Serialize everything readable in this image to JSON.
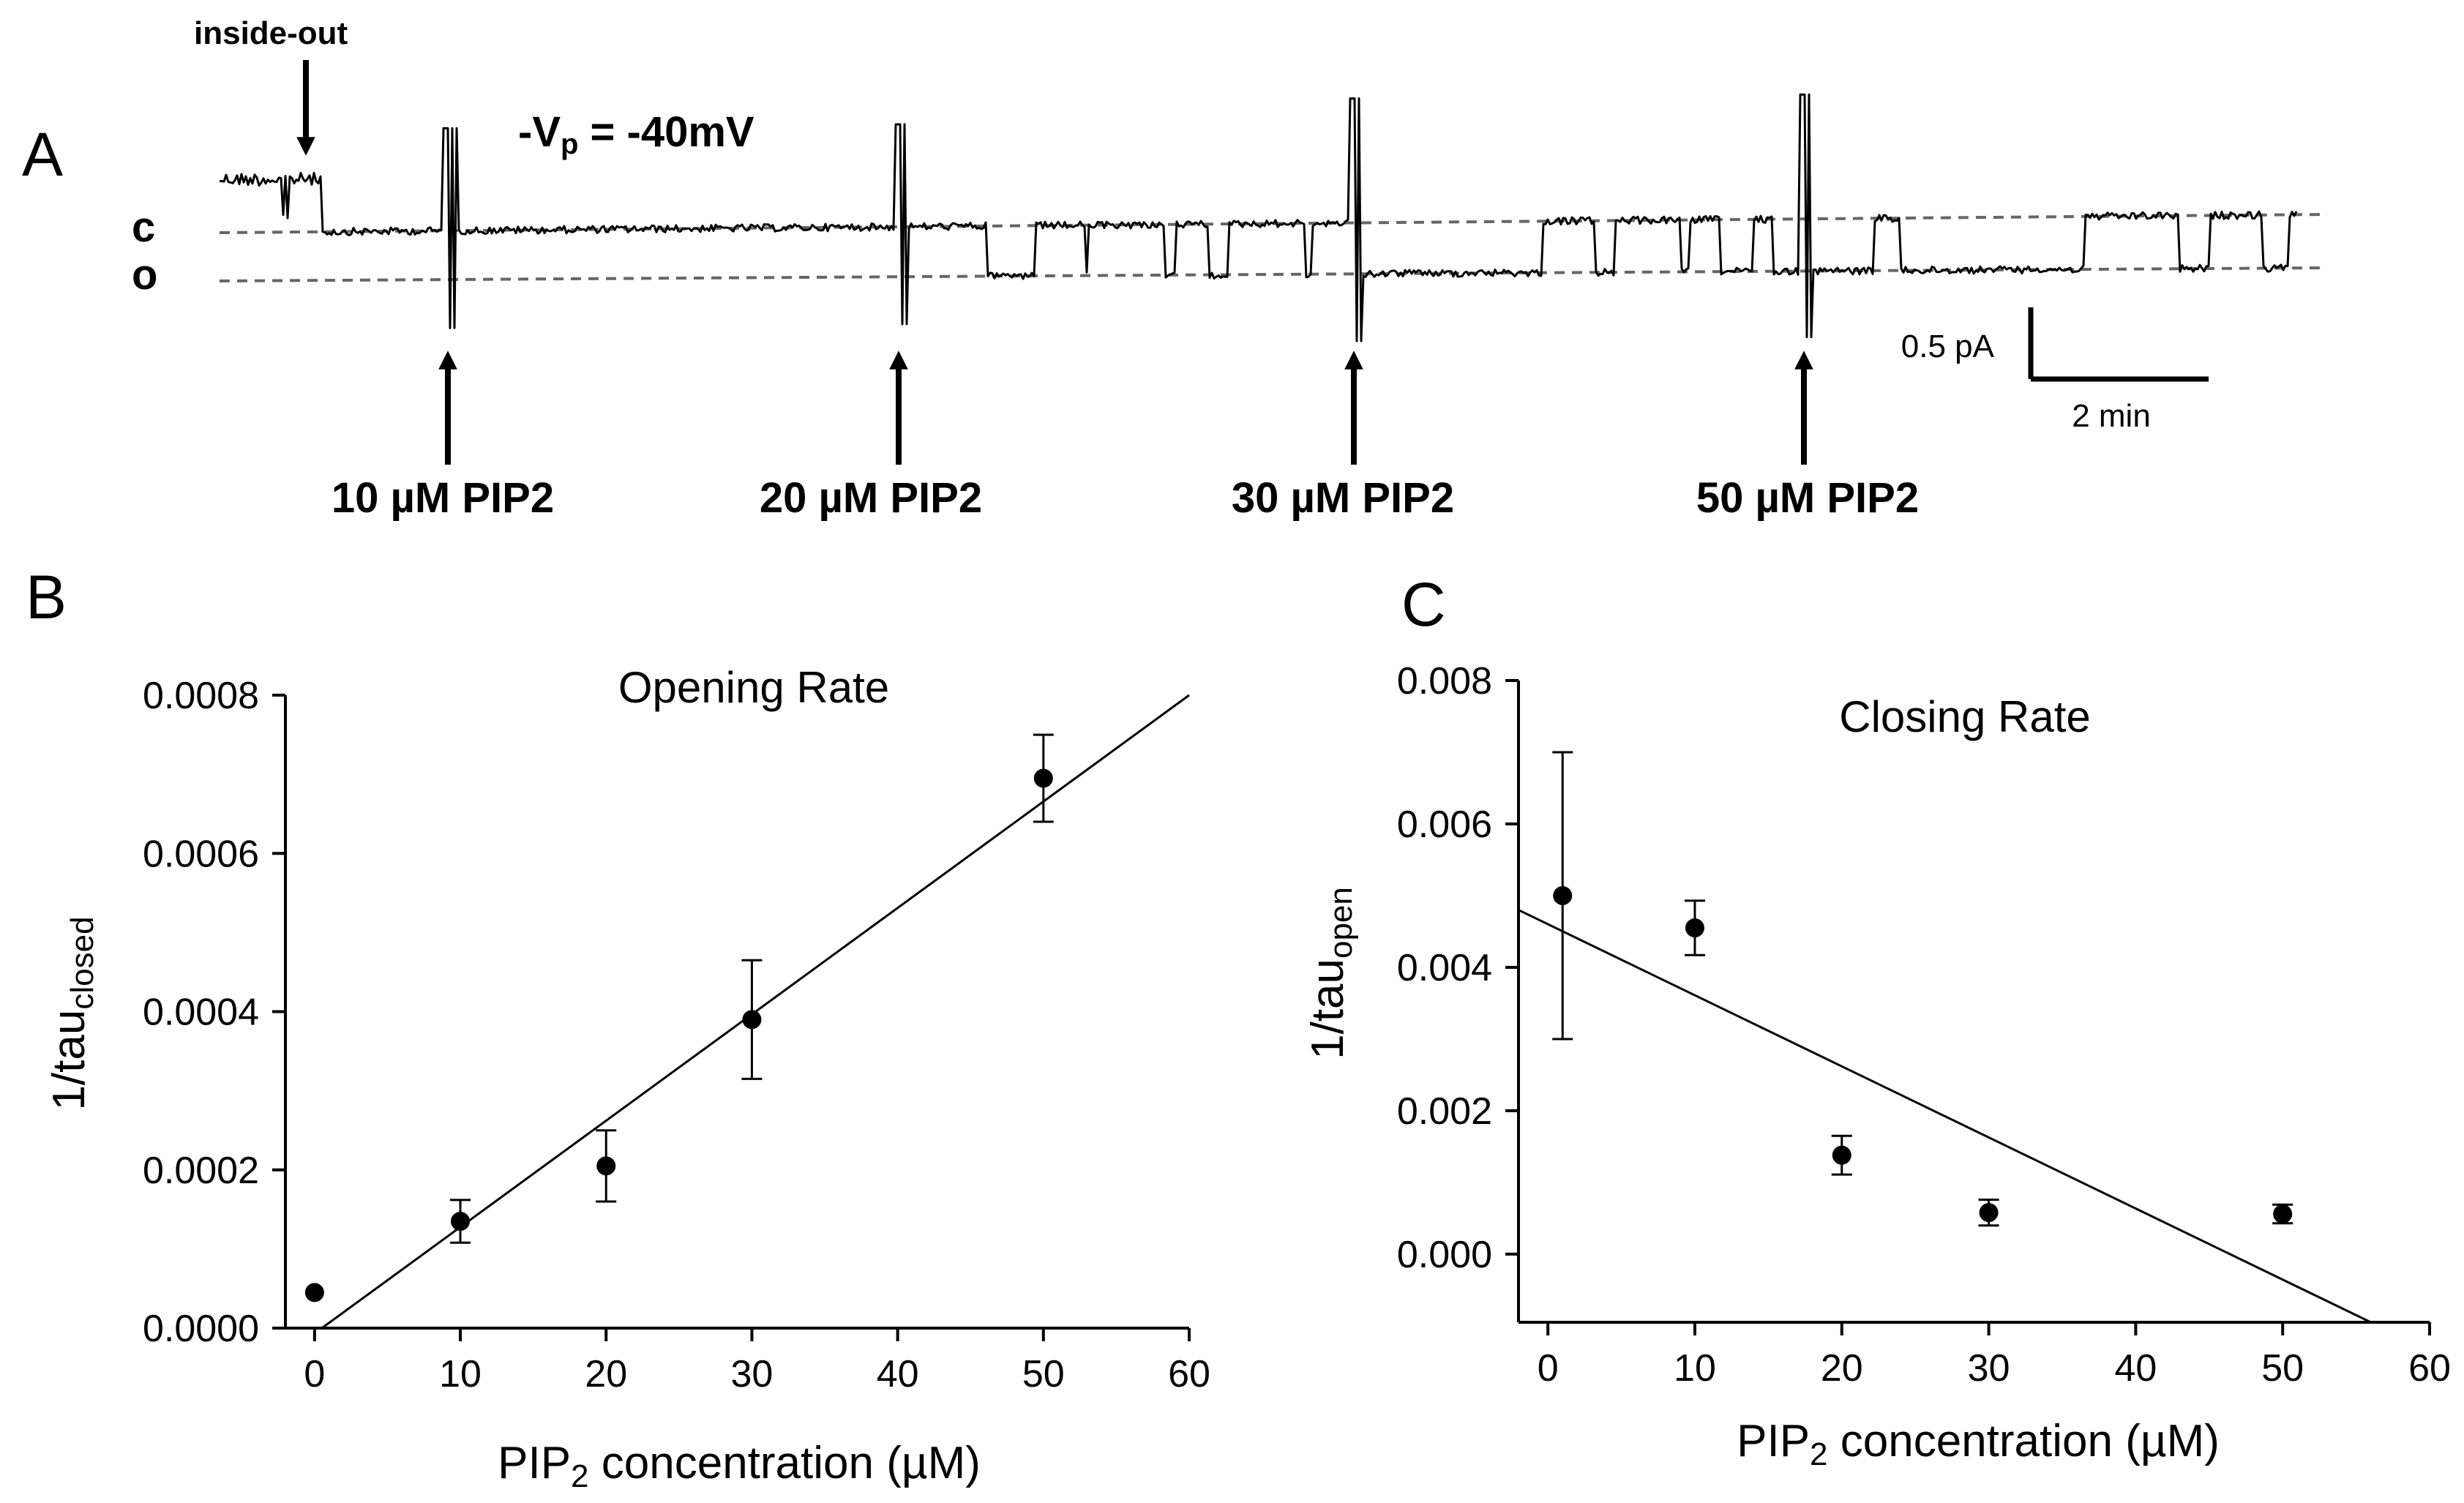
{
  "panelA": {
    "letter": "A",
    "inside_out_label": "inside-out",
    "closed_label": "c",
    "open_label": "o",
    "voltage_prefix": "-V",
    "voltage_sub": "p",
    "voltage_value": " = -40mV",
    "scale_current": "0.5 pA",
    "scale_time": "2 min",
    "applications": [
      {
        "label": "10 µM PIP2"
      },
      {
        "label": "20 µM PIP2"
      },
      {
        "label": "30 µM PIP2"
      },
      {
        "label": "50 µM PIP2"
      }
    ]
  },
  "panelB": {
    "letter": "B"
  },
  "panelC": {
    "letter": "C"
  },
  "chart_data": [
    {
      "type": "scatter",
      "id": "B",
      "title": "Opening Rate",
      "xlabel_pre": "PIP",
      "xlabel_sub": "2",
      "xlabel_post": " concentration (µM)",
      "ylabel_main": "1/tau",
      "ylabel_sub": "closed",
      "xlim": [
        -2,
        60
      ],
      "ylim": [
        0,
        0.0008
      ],
      "xticks": [
        0,
        10,
        20,
        30,
        40,
        50,
        60
      ],
      "yticks": [
        0,
        0.0002,
        0.0004,
        0.0006,
        0.0008
      ],
      "ytick_labels": [
        "0.0000",
        "0.0002",
        "0.0004",
        "0.0006",
        "0.0008"
      ],
      "x": [
        0,
        10,
        20,
        30,
        50
      ],
      "y": [
        4.5e-05,
        0.000135,
        0.000205,
        0.00039,
        0.000695
      ],
      "yerr": [
        0,
        2.7e-05,
        4.5e-05,
        7.5e-05,
        5.5e-05
      ],
      "fit": {
        "x": [
          0.5,
          60
        ],
        "y": [
          0,
          0.0008
        ]
      }
    },
    {
      "type": "scatter",
      "id": "C",
      "title": "Closing Rate",
      "xlabel_pre": "PIP",
      "xlabel_sub": "2",
      "xlabel_post": " concentration (µM)",
      "ylabel_main": "1/tau",
      "ylabel_sub": "open",
      "xlim": [
        -2,
        60
      ],
      "ylim": [
        -0.00095,
        0.008
      ],
      "xticks": [
        0,
        10,
        20,
        30,
        40,
        50,
        60
      ],
      "yticks": [
        0,
        0.002,
        0.004,
        0.006,
        0.008
      ],
      "ytick_labels": [
        "0.000",
        "0.002",
        "0.004",
        "0.006",
        "0.008"
      ],
      "x": [
        1,
        10,
        20,
        30,
        50
      ],
      "y": [
        0.005,
        0.00455,
        0.00138,
        0.00058,
        0.00056
      ],
      "yerr": [
        0.002,
        0.00038,
        0.00027,
        0.00018,
        0.00013
      ],
      "fit": {
        "x": [
          -2,
          56
        ],
        "y": [
          0.0048,
          -0.00095
        ]
      }
    }
  ]
}
